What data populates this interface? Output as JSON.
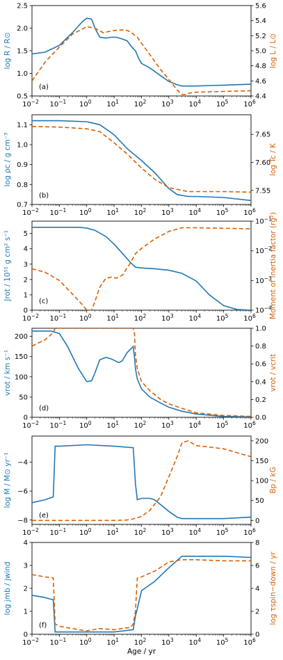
{
  "colors": {
    "blue": "#1f77b4",
    "orange": "#d95f02",
    "axis": "#000000"
  },
  "shared_x": {
    "label": "Age / yr",
    "scale": "log",
    "range": [
      0.01,
      1000000
    ],
    "tick_bases": [
      "10",
      "10",
      "10",
      "10",
      "10",
      "10",
      "10",
      "10",
      "10"
    ],
    "tick_exps": [
      "−2",
      "−1",
      "0",
      "1",
      "2",
      "3",
      "4",
      "5",
      "6"
    ]
  },
  "panels": [
    {
      "tag": "(a)",
      "left_label": "log R / R⊙",
      "right_label": "log L / L⊙",
      "left_ticks": [
        "0.5",
        "1.0",
        "1.5",
        "2.0",
        "2.5"
      ],
      "right_ticks": [
        "4.4",
        "4.6",
        "4.8",
        "5.0",
        "5.2",
        "5.4",
        "5.6"
      ]
    },
    {
      "tag": "(b)",
      "left_label": "log ρc / g cm⁻³",
      "right_label": "log Tc / K",
      "left_ticks": [
        "0.7",
        "0.8",
        "0.9",
        "1.0",
        "1.1"
      ],
      "right_ticks": [
        "7.55",
        "7.60",
        "7.65"
      ]
    },
    {
      "tag": "(c)",
      "left_label": "Jrot / 10⁵¹ g cm² s⁻¹",
      "right_label": "Moment of inertia factor (rg²)",
      "left_ticks": [
        "0",
        "1",
        "2",
        "3",
        "4",
        "5"
      ],
      "right_bases": [
        "10",
        "10",
        "10",
        "10"
      ],
      "right_exps": [
        "−4",
        "−3",
        "−2",
        "−1"
      ]
    },
    {
      "tag": "(d)",
      "left_label": "vrot / km s⁻¹",
      "right_label": "vrot / vcrit",
      "left_ticks": [
        "0",
        "50",
        "100",
        "150",
        "200"
      ],
      "right_ticks": [
        "0.0",
        "0.2",
        "0.4",
        "0.6",
        "0.8",
        "1.0"
      ]
    },
    {
      "tag": "(e)",
      "left_label": "log Ṁ / M⊙ yr⁻¹",
      "right_label": "Bp / kG",
      "left_ticks": [
        "−8",
        "−6",
        "−4"
      ],
      "right_ticks": [
        "0",
        "50",
        "100",
        "150",
        "200"
      ]
    },
    {
      "tag": "(f)",
      "left_label": "log jmb / jwind",
      "right_label": "log τspin−down / yr",
      "left_ticks": [
        "0",
        "1",
        "2",
        "3",
        "4"
      ],
      "right_ticks": [
        "0",
        "2",
        "4",
        "6",
        "8"
      ]
    }
  ],
  "chart_data": [
    {
      "type": "line",
      "panel": "(a)",
      "xscale": "log",
      "ylim": [
        0.5,
        2.5
      ],
      "y2lim": [
        4.4,
        5.6
      ],
      "series": [
        {
          "axis": "left",
          "color": "#1f77b4",
          "x": [
            0.01,
            0.03,
            0.1,
            0.3,
            0.7,
            1,
            1.5,
            2,
            3,
            5,
            8,
            12,
            20,
            30,
            40,
            50,
            60,
            80,
            100,
            200,
            500,
            1000,
            2000,
            3000,
            5000,
            10000,
            30000,
            100000,
            1000000
          ],
          "y": [
            1.43,
            1.47,
            1.62,
            1.9,
            2.15,
            2.22,
            2.2,
            2.0,
            1.8,
            1.78,
            1.8,
            1.8,
            1.76,
            1.72,
            1.62,
            1.55,
            1.5,
            1.32,
            1.22,
            1.12,
            0.95,
            0.82,
            0.75,
            0.72,
            0.72,
            0.72,
            0.73,
            0.74,
            0.76
          ]
        },
        {
          "axis": "right",
          "color": "#d95f02",
          "x": [
            0.01,
            0.03,
            0.1,
            0.3,
            1,
            2,
            4,
            10,
            25,
            40,
            70,
            100,
            200,
            500,
            1000,
            2000,
            3000,
            4000,
            6000,
            10000,
            100000,
            1000000
          ],
          "y": [
            4.6,
            4.85,
            5.05,
            5.22,
            5.32,
            5.3,
            5.24,
            5.27,
            5.28,
            5.25,
            5.18,
            5.1,
            4.95,
            4.75,
            4.62,
            4.48,
            4.42,
            4.42,
            4.44,
            4.45,
            4.46,
            4.47
          ]
        }
      ]
    },
    {
      "type": "line",
      "panel": "(b)",
      "xscale": "log",
      "ylim": [
        0.7,
        1.15
      ],
      "y2lim": [
        7.525,
        7.685
      ],
      "series": [
        {
          "axis": "left",
          "color": "#1f77b4",
          "x": [
            0.01,
            0.1,
            1,
            3,
            10,
            30,
            100,
            300,
            1000,
            2000,
            5000,
            10000,
            100000,
            1000000
          ],
          "y": [
            1.12,
            1.12,
            1.115,
            1.1,
            1.05,
            0.98,
            0.92,
            0.86,
            0.78,
            0.75,
            0.74,
            0.74,
            0.735,
            0.72
          ]
        },
        {
          "axis": "right",
          "color": "#d95f02",
          "x": [
            0.01,
            0.1,
            1,
            3,
            10,
            30,
            100,
            300,
            1000,
            2000,
            5000,
            10000,
            100000,
            1000000
          ],
          "y": [
            7.664,
            7.663,
            7.66,
            7.655,
            7.635,
            7.615,
            7.59,
            7.57,
            7.555,
            7.552,
            7.548,
            7.548,
            7.548,
            7.547
          ]
        }
      ]
    },
    {
      "type": "line",
      "panel": "(c)",
      "xscale": "log",
      "y2scale": "log",
      "ylim": [
        0,
        5.8
      ],
      "y2lim": [
        0.0001,
        0.1
      ],
      "series": [
        {
          "axis": "left",
          "color": "#1f77b4",
          "x": [
            0.01,
            0.1,
            0.5,
            1,
            2,
            5,
            10,
            20,
            40,
            60,
            100,
            300,
            1000,
            3000,
            10000,
            30000,
            100000,
            300000,
            1000000
          ],
          "y": [
            5.4,
            5.4,
            5.4,
            5.35,
            5.2,
            4.8,
            4.3,
            3.7,
            3.1,
            2.8,
            2.75,
            2.7,
            2.6,
            2.4,
            1.9,
            1.0,
            0.3,
            0.05,
            0.0
          ]
        },
        {
          "axis": "right",
          "color": "#d95f02",
          "x": [
            0.01,
            0.03,
            0.1,
            0.3,
            0.7,
            1,
            1.5,
            2,
            3,
            5,
            8,
            12,
            20,
            40,
            60,
            100,
            300,
            1000,
            3000,
            10000,
            1000000
          ],
          "y": [
            0.0025,
            0.0019,
            0.001,
            0.00035,
            0.00015,
            0.0001,
            0.0001,
            0.0002,
            0.0006,
            0.0012,
            0.0013,
            0.0012,
            0.0015,
            0.004,
            0.008,
            0.012,
            0.025,
            0.045,
            0.06,
            0.06,
            0.055
          ]
        }
      ]
    },
    {
      "type": "line",
      "panel": "(d)",
      "xscale": "log",
      "ylim": [
        0,
        220
      ],
      "y2lim": [
        0.0,
        1.0
      ],
      "series": [
        {
          "axis": "left",
          "color": "#1f77b4",
          "x": [
            0.01,
            0.05,
            0.1,
            0.2,
            0.5,
            1,
            1.5,
            2,
            3,
            5,
            8,
            15,
            20,
            30,
            50,
            55,
            60,
            70,
            100,
            200,
            500,
            1000,
            3000,
            10000,
            100000,
            1000000
          ],
          "y": [
            213,
            213,
            207,
            175,
            120,
            88,
            90,
            110,
            142,
            148,
            144,
            135,
            140,
            160,
            175,
            150,
            120,
            95,
            70,
            50,
            35,
            25,
            15,
            8,
            2,
            1
          ]
        },
        {
          "axis": "right",
          "color": "#d95f02",
          "x": [
            0.01,
            0.03,
            0.06,
            0.07,
            0.1,
            1,
            10,
            30,
            50,
            55,
            60,
            70,
            100,
            200,
            500,
            1000,
            3000,
            10000,
            100000,
            1000000
          ],
          "y": [
            0.8,
            0.87,
            0.95,
            1.0,
            1.0,
            1.0,
            1.0,
            1.0,
            1.0,
            0.95,
            0.7,
            0.55,
            0.4,
            0.3,
            0.2,
            0.15,
            0.1,
            0.05,
            0.02,
            0.01
          ]
        }
      ]
    },
    {
      "type": "line",
      "panel": "(e)",
      "xscale": "log",
      "ylim": [
        -8.3,
        -2.2
      ],
      "y2lim": [
        -10,
        212
      ],
      "series": [
        {
          "axis": "left",
          "color": "#1f77b4",
          "x": [
            0.01,
            0.03,
            0.06,
            0.07,
            0.1,
            1,
            10,
            50,
            60,
            70,
            100,
            200,
            300,
            1000,
            2000,
            3000,
            10000,
            100000,
            1000000
          ],
          "y": [
            -6.8,
            -6.6,
            -6.4,
            -2.9,
            -2.9,
            -2.8,
            -2.9,
            -3.0,
            -5.5,
            -6.6,
            -6.5,
            -6.5,
            -6.6,
            -7.4,
            -7.8,
            -7.9,
            -7.9,
            -7.9,
            -7.8
          ]
        },
        {
          "axis": "right",
          "color": "#d95f02",
          "x": [
            0.01,
            1,
            10,
            30,
            60,
            100,
            200,
            500,
            1000,
            2000,
            3000,
            5000,
            10000,
            100000,
            1000000
          ],
          "y": [
            0,
            0,
            0,
            1,
            5,
            10,
            25,
            60,
            110,
            160,
            195,
            200,
            188,
            180,
            160
          ]
        }
      ]
    },
    {
      "type": "line",
      "panel": "(f)",
      "xscale": "log",
      "ylim": [
        0,
        4
      ],
      "y2lim": [
        0,
        8
      ],
      "series": [
        {
          "axis": "left",
          "color": "#1f77b4",
          "x": [
            0.01,
            0.03,
            0.06,
            0.07,
            0.1,
            1,
            10,
            50,
            60,
            70,
            100,
            300,
            1000,
            3000,
            10000,
            100000,
            1000000
          ],
          "y": [
            1.7,
            1.6,
            1.5,
            0.1,
            0.1,
            0.1,
            0.1,
            0.2,
            0.8,
            1.1,
            1.9,
            2.3,
            2.9,
            3.4,
            3.4,
            3.4,
            3.35
          ]
        },
        {
          "axis": "right",
          "color": "#d95f02",
          "x": [
            0.01,
            0.03,
            0.06,
            0.07,
            0.1,
            0.5,
            1,
            3,
            10,
            40,
            50,
            60,
            70,
            100,
            300,
            1000,
            3000,
            10000,
            100000,
            1000000
          ],
          "y": [
            5.2,
            5.0,
            4.9,
            0.9,
            0.7,
            0.4,
            0.3,
            0.5,
            0.4,
            0.6,
            0.9,
            2.0,
            4.9,
            5.0,
            5.5,
            6.3,
            6.5,
            6.5,
            6.4,
            6.4
          ]
        }
      ]
    }
  ]
}
